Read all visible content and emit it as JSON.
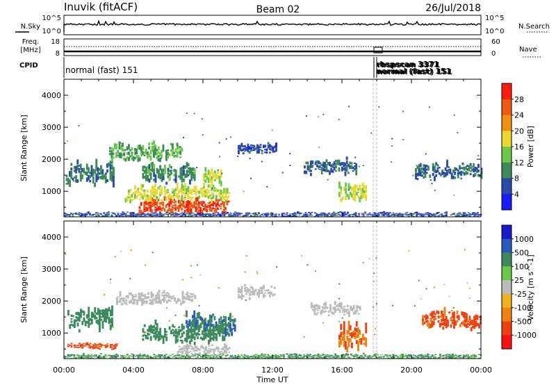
{
  "header": {
    "station": "Inuvik (fitACF)",
    "beam": "Beam 02",
    "date": "26/Jul/2018"
  },
  "strips": {
    "nsky_label": "N.Sky",
    "nsky_ticks": [
      "10^5",
      "10^0"
    ],
    "nsearch_label": "N.Search",
    "nsearch_ticks": [
      "10^5",
      "10^0"
    ],
    "freq_label": "Freq.",
    "freq_unit": "[MHz]",
    "freq_ticks": [
      "18",
      "8"
    ],
    "nave_label": "Nave",
    "nave_ticks": [
      "60",
      "0"
    ],
    "cpid_label": "CPID",
    "cpid_text": "normal (fast) 151",
    "cpid_overlap_1": "rbspscan 3371",
    "cpid_overlap_2": "normal (fast) 151"
  },
  "time_axis": {
    "label": "Time UT",
    "ticks": [
      "00:00",
      "04:00",
      "08:00",
      "12:00",
      "16:00",
      "20:00",
      "00:00"
    ]
  },
  "colors": {
    "power": [
      "#1a1aff",
      "#2a4aaa",
      "#3d8a58",
      "#6ac848",
      "#e8d830",
      "#f09010",
      "#f05a10",
      "#ff1a10"
    ],
    "velocity": [
      "#1a1acc",
      "#2a5abb",
      "#3c8a5e",
      "#66c844",
      "#bbbbbb",
      "#f0b020",
      "#f08010",
      "#f04010",
      "#ff1010"
    ]
  },
  "chart_data": [
    {
      "type": "heatmap",
      "title": "",
      "xlabel": "Time UT",
      "ylabel": "Slant Range [km]",
      "xlim": [
        0,
        24
      ],
      "ylim": [
        200,
        4500
      ],
      "yticks": [
        1000,
        2000,
        3000,
        4000
      ],
      "colorbar": {
        "label": "Power [dB]",
        "ticks": [
          "4",
          "8",
          "12",
          "16",
          "20",
          "24",
          "28"
        ],
        "range": [
          0,
          32
        ]
      },
      "echo_bands": [
        {
          "t": [
            0.1,
            2.8
          ],
          "range": [
            1200,
            1900
          ],
          "value": 9
        },
        {
          "t": [
            2.6,
            6.8
          ],
          "range": [
            2000,
            2500
          ],
          "value": 12
        },
        {
          "t": [
            4.5,
            7.5
          ],
          "range": [
            1300,
            1900
          ],
          "value": 10
        },
        {
          "t": [
            4.3,
            9.5
          ],
          "range": [
            300,
            800
          ],
          "value": 27
        },
        {
          "t": [
            3.5,
            9.5
          ],
          "range": [
            700,
            1200
          ],
          "value": 17
        },
        {
          "t": [
            8.0,
            9.0
          ],
          "range": [
            1200,
            1700
          ],
          "value": 16
        },
        {
          "t": [
            10.0,
            12.2
          ],
          "range": [
            2200,
            2500
          ],
          "value": 6
        },
        {
          "t": [
            13.8,
            16.8
          ],
          "range": [
            1550,
            2000
          ],
          "value": 8
        },
        {
          "t": [
            15.8,
            17.4
          ],
          "range": [
            700,
            1300
          ],
          "value": 16
        },
        {
          "t": [
            20.2,
            24.0
          ],
          "range": [
            1400,
            1900
          ],
          "value": 7
        },
        {
          "t": [
            0.0,
            24.0
          ],
          "range": [
            200,
            350
          ],
          "value": 6
        }
      ]
    },
    {
      "type": "heatmap",
      "title": "",
      "xlabel": "Time UT",
      "ylabel": "Slant Range [km]",
      "xlim": [
        0,
        24
      ],
      "ylim": [
        200,
        4500
      ],
      "yticks": [
        1000,
        2000,
        3000,
        4000
      ],
      "colorbar": {
        "label": "Velocity [m s^-1]",
        "ticks": [
          "1000",
          "500",
          "100",
          "25",
          "-25",
          "-100",
          "-500",
          "-1000"
        ],
        "range": [
          -1200,
          1200
        ]
      },
      "echo_bands": [
        {
          "t": [
            0.2,
            2.8
          ],
          "range": [
            1100,
            1800
          ],
          "value": 200
        },
        {
          "t": [
            0.2,
            3.0
          ],
          "range": [
            500,
            700
          ],
          "value": -400
        },
        {
          "t": [
            3.0,
            7.5
          ],
          "range": [
            1900,
            2300
          ],
          "value": 0
        },
        {
          "t": [
            4.5,
            9.5
          ],
          "range": [
            700,
            1300
          ],
          "value": 200
        },
        {
          "t": [
            7.0,
            9.8
          ],
          "range": [
            1000,
            1600
          ],
          "value": 300
        },
        {
          "t": [
            6.5,
            9.5
          ],
          "range": [
            300,
            650
          ],
          "value": 0
        },
        {
          "t": [
            10.0,
            12.2
          ],
          "range": [
            2100,
            2500
          ],
          "value": 0
        },
        {
          "t": [
            14.2,
            17.0
          ],
          "range": [
            1550,
            1950
          ],
          "value": 0
        },
        {
          "t": [
            15.8,
            17.4
          ],
          "range": [
            450,
            1300
          ],
          "value": -300
        },
        {
          "t": [
            20.6,
            24.0
          ],
          "range": [
            1150,
            1700
          ],
          "value": -400
        },
        {
          "t": [
            0.0,
            24.0
          ],
          "range": [
            200,
            350
          ],
          "value": 80
        }
      ]
    }
  ]
}
